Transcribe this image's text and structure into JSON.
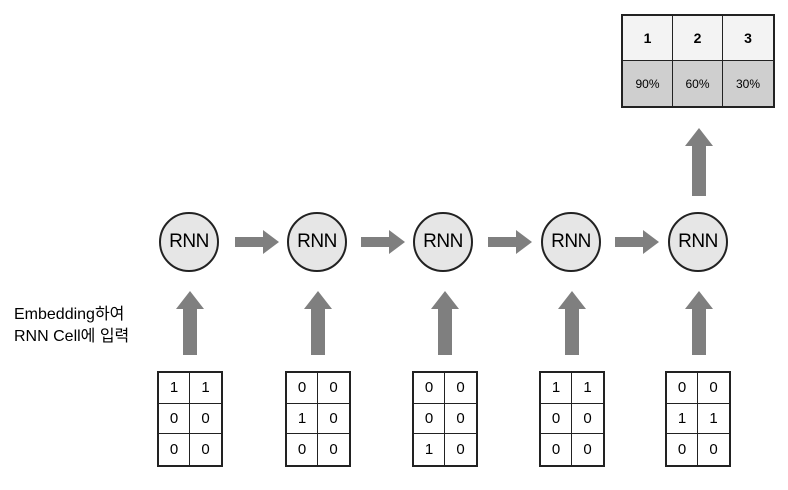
{
  "steps": [
    {
      "node_label": "RNN",
      "input": [
        [
          "1",
          "1"
        ],
        [
          "0",
          "0"
        ],
        [
          "0",
          "0"
        ]
      ]
    },
    {
      "node_label": "RNN",
      "input": [
        [
          "0",
          "0"
        ],
        [
          "1",
          "0"
        ],
        [
          "0",
          "0"
        ]
      ]
    },
    {
      "node_label": "RNN",
      "input": [
        [
          "0",
          "0"
        ],
        [
          "0",
          "0"
        ],
        [
          "1",
          "0"
        ]
      ]
    },
    {
      "node_label": "RNN",
      "input": [
        [
          "1",
          "1"
        ],
        [
          "0",
          "0"
        ],
        [
          "0",
          "0"
        ]
      ]
    },
    {
      "node_label": "RNN",
      "input": [
        [
          "0",
          "0"
        ],
        [
          "1",
          "1"
        ],
        [
          "0",
          "0"
        ]
      ]
    }
  ],
  "output": {
    "classes": [
      "1",
      "2",
      "3"
    ],
    "probabilities": [
      "90%",
      "60%",
      "30%"
    ]
  },
  "annotation": {
    "line1": "Embedding하여",
    "line2": "RNN Cell에 입력"
  },
  "colors": {
    "arrow": "#7f7f7f",
    "node_fill": "#e6e6e6",
    "prob_fill": "#cfcfcf"
  }
}
